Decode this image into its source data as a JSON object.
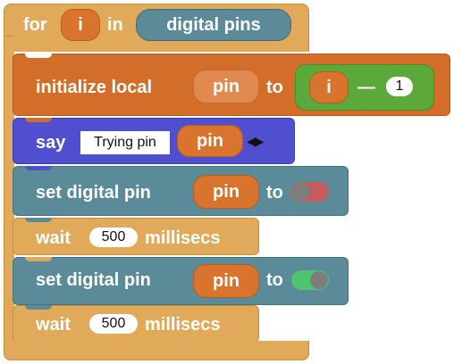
{
  "loop": {
    "keyword": "for",
    "var": "i",
    "in": "in",
    "source": "digital pins"
  },
  "stmts": {
    "init": {
      "label": "initialize local",
      "var": "pin",
      "to": "to",
      "left": "i",
      "op": "—",
      "right": "1"
    },
    "say": {
      "label": "say",
      "text": "Trying pin",
      "var": "pin"
    },
    "set1": {
      "label": "set digital pin",
      "var": "pin",
      "to": "to",
      "value": "off"
    },
    "wait1": {
      "label": "wait",
      "ms": "500",
      "unit": "millisecs"
    },
    "set2": {
      "label": "set digital pin",
      "var": "pin",
      "to": "to",
      "value": "on"
    },
    "wait2": {
      "label": "wait",
      "ms": "500",
      "unit": "millisecs"
    }
  },
  "colors": {
    "control": "#e1a95a",
    "variables": "#d26e2a",
    "pins": "#5b8b98",
    "say": "#4f4fcf",
    "math": "#5ca93b",
    "toggle_off": "#c75a5a",
    "toggle_on": "#4ec46f"
  }
}
